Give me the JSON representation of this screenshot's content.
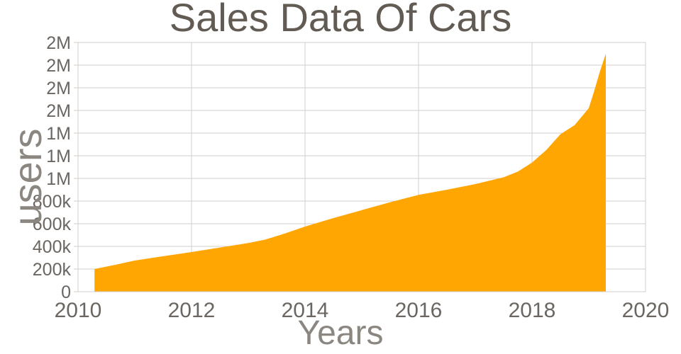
{
  "page": {
    "background": "#ffffff"
  },
  "chart_data": {
    "type": "area",
    "title": "Sales Data Of Cars",
    "xlabel": "Years",
    "ylabel": "users",
    "x_range": [
      2010,
      2020
    ],
    "y_range": [
      0,
      2200000
    ],
    "grid": true,
    "legend": false,
    "x_ticks": [
      {
        "value": 2010,
        "label": "2010"
      },
      {
        "value": 2012,
        "label": "2012"
      },
      {
        "value": 2014,
        "label": "2014"
      },
      {
        "value": 2016,
        "label": "2016"
      },
      {
        "value": 2018,
        "label": "2018"
      },
      {
        "value": 2020,
        "label": "2020"
      }
    ],
    "x_gridlines": [
      2012,
      2014,
      2016,
      2018
    ],
    "y_ticks": [
      {
        "value": 0,
        "label": "0"
      },
      {
        "value": 200000,
        "label": "200k"
      },
      {
        "value": 400000,
        "label": "400k"
      },
      {
        "value": 600000,
        "label": "600k"
      },
      {
        "value": 800000,
        "label": "800k"
      },
      {
        "value": 1000000,
        "label": "1M"
      },
      {
        "value": 1200000,
        "label": "1M"
      },
      {
        "value": 1400000,
        "label": "1M"
      },
      {
        "value": 1600000,
        "label": "2M"
      },
      {
        "value": 1800000,
        "label": "2M"
      },
      {
        "value": 2000000,
        "label": "2M"
      },
      {
        "value": 2200000,
        "label": "2M"
      }
    ],
    "series": [
      {
        "name": "users",
        "color": "#ffa602",
        "points": [
          [
            2010.29,
            200000
          ],
          [
            2010.65,
            237000
          ],
          [
            2011.0,
            275000
          ],
          [
            2011.5,
            313000
          ],
          [
            2012.0,
            350000
          ],
          [
            2012.5,
            390000
          ],
          [
            2013.0,
            430000
          ],
          [
            2013.3,
            460000
          ],
          [
            2013.65,
            515000
          ],
          [
            2014.0,
            575000
          ],
          [
            2014.5,
            650000
          ],
          [
            2015.0,
            720000
          ],
          [
            2015.5,
            790000
          ],
          [
            2016.0,
            855000
          ],
          [
            2016.5,
            900000
          ],
          [
            2017.0,
            950000
          ],
          [
            2017.5,
            1010000
          ],
          [
            2017.75,
            1060000
          ],
          [
            2018.0,
            1140000
          ],
          [
            2018.25,
            1250000
          ],
          [
            2018.5,
            1390000
          ],
          [
            2018.75,
            1470000
          ],
          [
            2019.0,
            1620000
          ],
          [
            2019.1,
            1780000
          ],
          [
            2019.2,
            1950000
          ],
          [
            2019.3,
            2100000
          ]
        ]
      }
    ],
    "colors": {
      "title": "#615b54",
      "axis_title": "#8b8680",
      "tick": "#6b6661",
      "grid": "#d1cfcd",
      "area": "#ffa602"
    }
  }
}
